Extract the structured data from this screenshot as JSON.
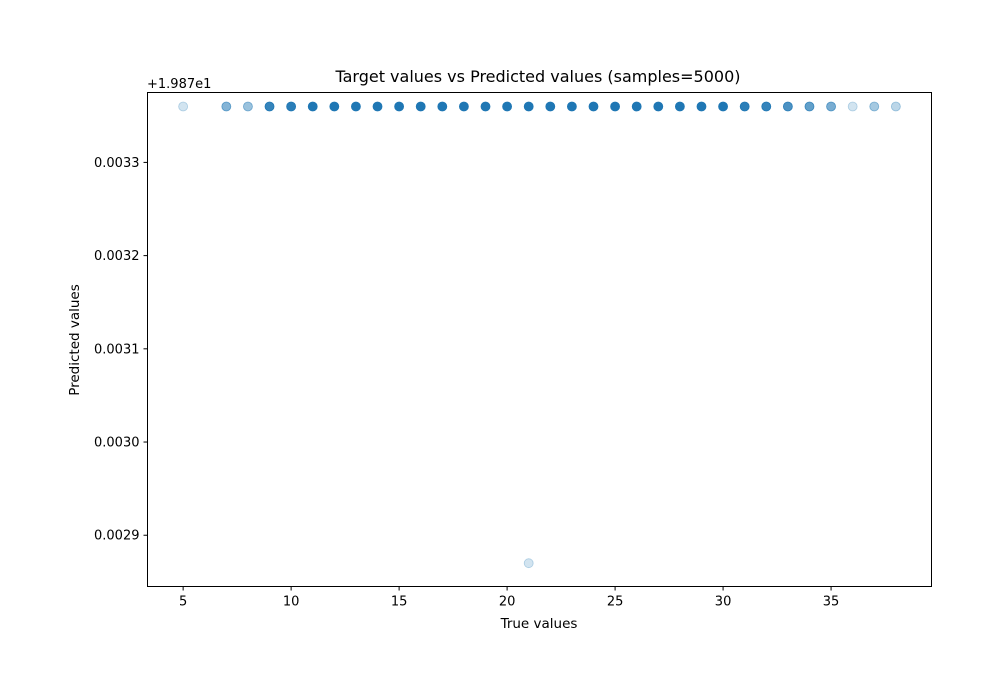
{
  "chart_data": {
    "type": "scatter",
    "title": "Target values vs Predicted values (samples=5000)",
    "xlabel": "True values",
    "ylabel": "Predicted values",
    "xlim": [
      3.35,
      39.65
    ],
    "ylim": [
      0.002845,
      0.003375
    ],
    "y_offset_label": "+1.987e1",
    "x_ticks": [
      5,
      10,
      15,
      20,
      25,
      30,
      35
    ],
    "x_tick_labels": [
      "5",
      "10",
      "15",
      "20",
      "25",
      "30",
      "35"
    ],
    "y_ticks": [
      0.0029,
      0.003,
      0.0031,
      0.0032,
      0.0033
    ],
    "y_tick_labels": [
      "0.0029",
      "0.0030",
      "0.0031",
      "0.0032",
      "0.0033"
    ],
    "marker_color": "#1f77b4",
    "grid": false,
    "points": [
      {
        "x": 5,
        "y": 0.00336,
        "opacity": 0.2
      },
      {
        "x": 7,
        "y": 0.00336,
        "opacity": 0.55
      },
      {
        "x": 8,
        "y": 0.00336,
        "opacity": 0.45
      },
      {
        "x": 9,
        "y": 0.00336,
        "opacity": 0.9
      },
      {
        "x": 10,
        "y": 0.00336,
        "opacity": 0.95
      },
      {
        "x": 11,
        "y": 0.00336,
        "opacity": 1.0
      },
      {
        "x": 12,
        "y": 0.00336,
        "opacity": 1.0
      },
      {
        "x": 13,
        "y": 0.00336,
        "opacity": 1.0
      },
      {
        "x": 14,
        "y": 0.00336,
        "opacity": 1.0
      },
      {
        "x": 15,
        "y": 0.00336,
        "opacity": 1.0
      },
      {
        "x": 16,
        "y": 0.00336,
        "opacity": 1.0
      },
      {
        "x": 17,
        "y": 0.00336,
        "opacity": 1.0
      },
      {
        "x": 18,
        "y": 0.00336,
        "opacity": 1.0
      },
      {
        "x": 19,
        "y": 0.00336,
        "opacity": 1.0
      },
      {
        "x": 20,
        "y": 0.00336,
        "opacity": 1.0
      },
      {
        "x": 21,
        "y": 0.00336,
        "opacity": 1.0
      },
      {
        "x": 22,
        "y": 0.00336,
        "opacity": 1.0
      },
      {
        "x": 23,
        "y": 0.00336,
        "opacity": 1.0
      },
      {
        "x": 24,
        "y": 0.00336,
        "opacity": 1.0
      },
      {
        "x": 25,
        "y": 0.00336,
        "opacity": 1.0
      },
      {
        "x": 26,
        "y": 0.00336,
        "opacity": 1.0
      },
      {
        "x": 27,
        "y": 0.00336,
        "opacity": 1.0
      },
      {
        "x": 28,
        "y": 0.00336,
        "opacity": 1.0
      },
      {
        "x": 29,
        "y": 0.00336,
        "opacity": 1.0
      },
      {
        "x": 30,
        "y": 0.00336,
        "opacity": 1.0
      },
      {
        "x": 31,
        "y": 0.00336,
        "opacity": 0.95
      },
      {
        "x": 32,
        "y": 0.00336,
        "opacity": 0.9
      },
      {
        "x": 33,
        "y": 0.00336,
        "opacity": 0.8
      },
      {
        "x": 34,
        "y": 0.00336,
        "opacity": 0.7
      },
      {
        "x": 35,
        "y": 0.00336,
        "opacity": 0.6
      },
      {
        "x": 36,
        "y": 0.00336,
        "opacity": 0.2
      },
      {
        "x": 37,
        "y": 0.00336,
        "opacity": 0.4
      },
      {
        "x": 38,
        "y": 0.00336,
        "opacity": 0.3
      },
      {
        "x": 21,
        "y": 0.00287,
        "opacity": 0.2
      }
    ]
  }
}
